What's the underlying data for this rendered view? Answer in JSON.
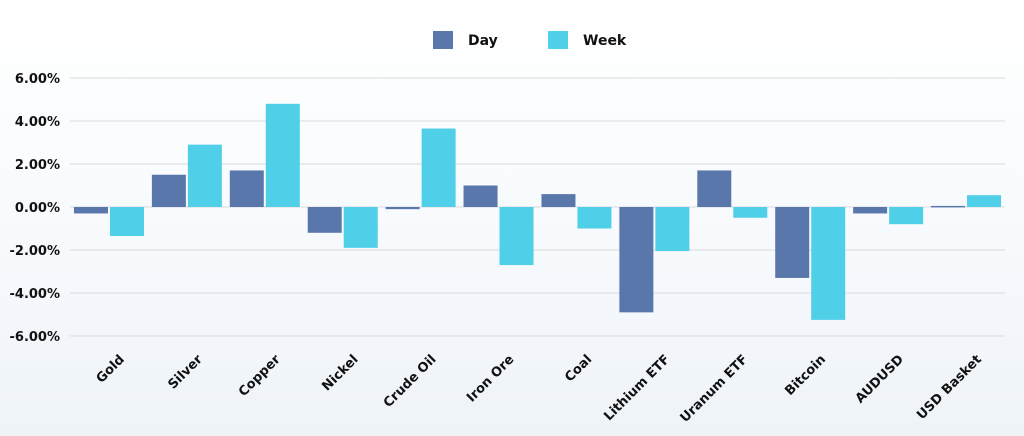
{
  "colors": {
    "day": "#5a77ab",
    "week": "#4fcfe8",
    "grid": "#d9d9d9",
    "text": "#111111"
  },
  "chart_data": {
    "type": "bar",
    "categories": [
      "Gold",
      "Silver",
      "Copper",
      "Nickel",
      "Crude Oil",
      "Iron Ore",
      "Coal",
      "Lithium ETF",
      "Uranum ETF",
      "Bitcoin",
      "AUDUSD",
      "USD Basket"
    ],
    "series": [
      {
        "name": "Day",
        "values": [
          -0.3,
          1.5,
          1.7,
          -1.2,
          -0.1,
          1.0,
          0.6,
          -4.9,
          1.7,
          -3.3,
          -0.3,
          0.05
        ]
      },
      {
        "name": "Week",
        "values": [
          -1.35,
          2.9,
          4.8,
          -1.9,
          3.65,
          -2.7,
          -1.0,
          -2.05,
          -0.5,
          -5.25,
          -0.8,
          0.55
        ]
      }
    ],
    "y_ticks": [
      "6.00%",
      "4.00%",
      "2.00%",
      "0.00%",
      "-2.00%",
      "-4.00%",
      "-6.00%"
    ],
    "ylim": [
      -6,
      6
    ],
    "grid": true,
    "legend": "top-center"
  }
}
